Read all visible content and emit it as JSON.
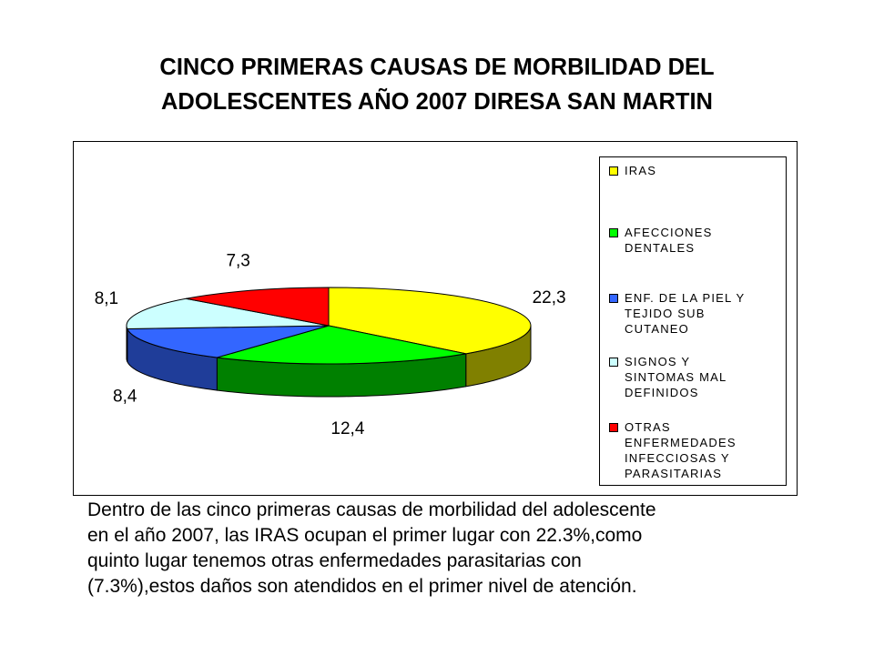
{
  "title": {
    "line1": "CINCO PRIMERAS CAUSAS DE MORBILIDAD DEL",
    "line2": "ADOLESCENTES AÑO 2007 DIRESA SAN MARTIN"
  },
  "chart_data": {
    "type": "pie",
    "style": "3d",
    "values": [
      22.3,
      12.4,
      8.4,
      8.1,
      7.3
    ],
    "data_labels": [
      "22,3",
      "12,4",
      "8,4",
      "8,1",
      "7,3"
    ],
    "categories": [
      "IRAS",
      "AFECCIONES DENTALES",
      "ENF. DE LA PIEL Y TEJIDO SUB CUTANEO",
      "SIGNOS Y SINTOMAS MAL DEFINIDOS",
      "OTRAS ENFERMEDADES INFECCIOSAS Y PARASITARIAS"
    ],
    "legend_labels": [
      "IRAS",
      "AFECCIONES\nDENTALES",
      "ENF. DE LA PIEL Y\nTEJIDO SUB\nCUTANEO",
      "SIGNOS Y\nSINTOMAS MAL\nDEFINIDOS",
      "OTRAS\nENFERMEDADES\nINFECCIOSAS Y\nPARASITARIAS"
    ],
    "colors": [
      "#ffff00",
      "#00ff00",
      "#3366ff",
      "#ccffff",
      "#ff0000"
    ],
    "side_colors": [
      "#808000",
      "#008000",
      "#1f3d99",
      "#7fa8a8",
      "#990000"
    ],
    "legend_position": "right"
  },
  "description": {
    "lines": [
      "Dentro de las cinco primeras causas de morbilidad del adolescente",
      "en el año 2007, las IRAS ocupan el primer lugar con 22.3%,como",
      "quinto lugar tenemos otras enfermedades parasitarias con",
      "(7.3%),estos daños son atendidos en el primer nivel de atención."
    ]
  }
}
